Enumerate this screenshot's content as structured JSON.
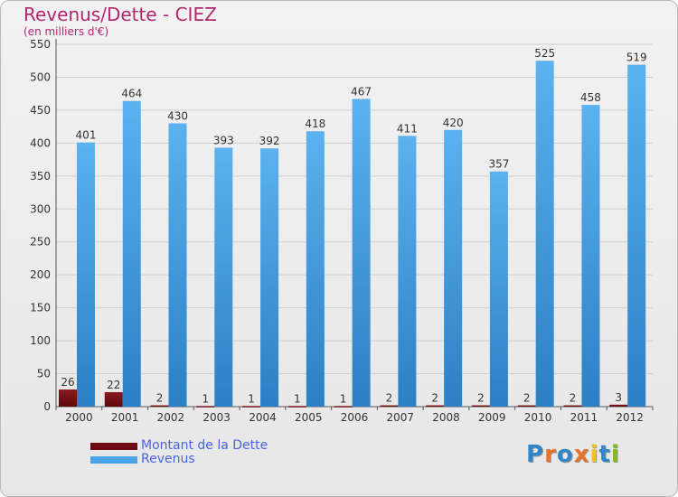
{
  "header": {
    "title": "Revenus/Dette - CIEZ",
    "subtitle": "(en milliers d'€)"
  },
  "legend": {
    "items": [
      {
        "label": "Montant de la Dette",
        "color": "#6b0b12"
      },
      {
        "label": "Revenus",
        "color": "#4aa3e6"
      }
    ]
  },
  "logo": {
    "text": "Proxiti",
    "letters": [
      {
        "ch": "P",
        "color": "#2f86c8"
      },
      {
        "ch": "r",
        "color": "#e8732a"
      },
      {
        "ch": "o",
        "color": "#2f86c8"
      },
      {
        "ch": "x",
        "color": "#e8732a"
      },
      {
        "ch": "i",
        "color": "#f4c21d"
      },
      {
        "ch": "t",
        "color": "#2f86c8"
      },
      {
        "ch": "i",
        "color": "#83b91b"
      }
    ]
  },
  "chart_data": {
    "type": "bar",
    "title": "Revenus/Dette - CIEZ",
    "subtitle": "(en milliers d'€)",
    "categories": [
      "2000",
      "2001",
      "2002",
      "2003",
      "2004",
      "2005",
      "2006",
      "2007",
      "2008",
      "2009",
      "2010",
      "2011",
      "2012"
    ],
    "series": [
      {
        "name": "Montant de la Dette",
        "color": "#6b0b12",
        "values": [
          26,
          22,
          2,
          1,
          1,
          1,
          1,
          2,
          2,
          2,
          2,
          2,
          3
        ]
      },
      {
        "name": "Revenus",
        "color": "#4aa3e6",
        "values": [
          401,
          464,
          430,
          393,
          392,
          418,
          467,
          411,
          420,
          357,
          525,
          458,
          519
        ]
      }
    ],
    "ylim": [
      0,
      550
    ],
    "yticks": [
      0,
      50,
      100,
      150,
      200,
      250,
      300,
      350,
      400,
      450,
      500,
      550
    ],
    "grid": true
  }
}
